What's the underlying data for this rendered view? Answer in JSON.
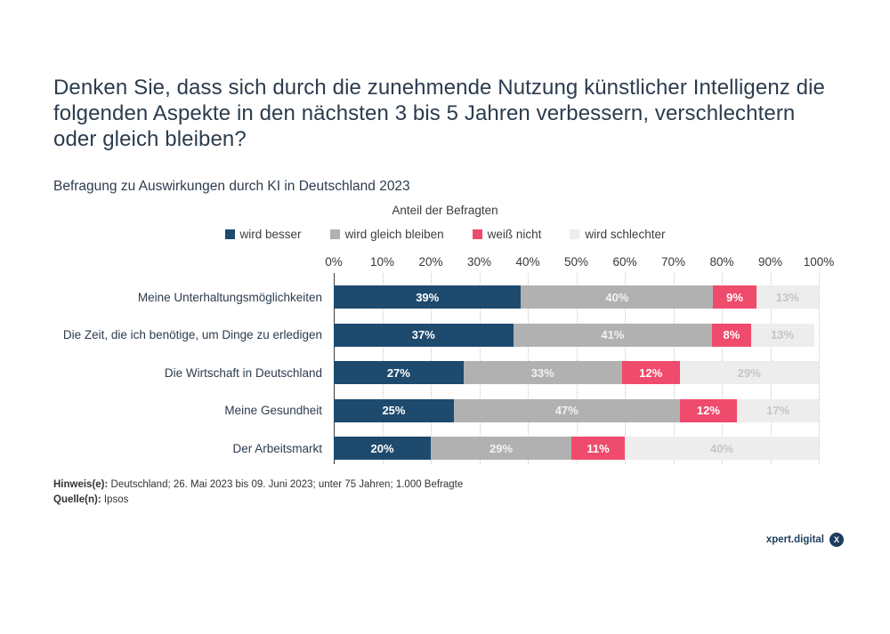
{
  "title": "Denken Sie, dass sich durch die zunehmende Nutzung künstlicher Intelligenz die folgenden Aspekte in den nächsten 3 bis 5 Jahren verbessern, verschlechtern oder gleich bleiben?",
  "subtitle": "Befragung zu Auswirkungen durch KI in Deutschland 2023",
  "axis_title": "Anteil der Befragten",
  "chart_data": {
    "type": "bar",
    "stacked": true,
    "orientation": "horizontal",
    "title": "Befragung zu Auswirkungen durch KI in Deutschland 2023",
    "xlabel": "Anteil der Befragten",
    "xlim": [
      0,
      100
    ],
    "unit": "%",
    "grid": "dotted-vertical",
    "legend_position": "top",
    "x_tick_labels": [
      "0%",
      "10%",
      "20%",
      "30%",
      "40%",
      "50%",
      "60%",
      "70%",
      "80%",
      "90%",
      "100%"
    ],
    "categories": [
      "Meine Unterhaltungsmöglichkeiten",
      "Die Zeit, die ich benötige, um Dinge zu erledigen",
      "Die Wirtschaft in Deutschland",
      "Meine Gesundheit",
      "Der Arbeitsmarkt"
    ],
    "series": [
      {
        "name": "wird besser",
        "color": "#1e4a6e",
        "label_color": "#ffffff",
        "values": [
          39,
          37,
          27,
          25,
          20
        ]
      },
      {
        "name": "wird gleich bleiben",
        "color": "#b1b1b1",
        "label_color": "#f2f2f2",
        "values": [
          40,
          41,
          33,
          47,
          29
        ]
      },
      {
        "name": "weiß nicht",
        "color": "#ef4b6c",
        "label_color": "#ffffff",
        "values": [
          9,
          8,
          12,
          12,
          11
        ]
      },
      {
        "name": "wird schlechter",
        "color": "#ededed",
        "label_color": "#c5c5c5",
        "values": [
          13,
          13,
          29,
          17,
          40
        ]
      }
    ]
  },
  "footnotes": [
    {
      "label": "Hinweis(e):",
      "text": " Deutschland; 26. Mai 2023 bis 09. Juni 2023; unter 75 Jahren; 1.000 Befragte"
    },
    {
      "label": "Quelle(n):",
      "text": " Ipsos"
    }
  ],
  "logo": {
    "text": "xpert.digital",
    "badge": "X"
  },
  "colors": {
    "title_text": "#2c3c4d",
    "axis_text": "#383838",
    "gridline": "#c8c8c8",
    "axis_line": "#3d3d3d",
    "background": "#ffffff"
  }
}
